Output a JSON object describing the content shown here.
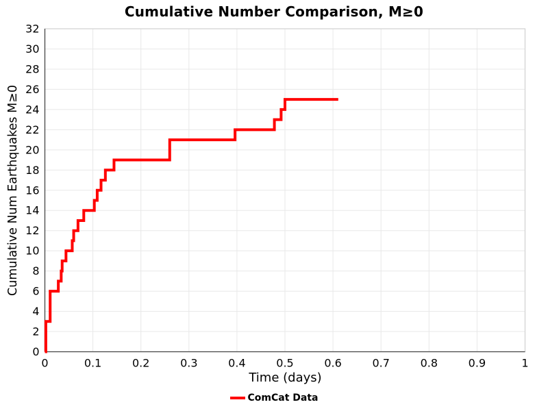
{
  "chart": {
    "title": "Cumulative Number Comparison, M≥0",
    "xlabel": "Time (days)",
    "ylabel": "Cumulative Num Earthquakes M≥0",
    "legend_label": "ComCat Data",
    "accent_color": "#ff0000"
  },
  "chart_data": {
    "type": "line",
    "subtype": "cumulative-step",
    "title": "Cumulative Number Comparison, M≥0",
    "xlabel": "Time (days)",
    "ylabel": "Cumulative Num Earthquakes M≥0",
    "xlim": [
      0,
      1
    ],
    "ylim": [
      0,
      32
    ],
    "grid": true,
    "legend_position": "bottom-center",
    "x_ticks": [
      0,
      0.1,
      0.2,
      0.3,
      0.4,
      0.5,
      0.6,
      0.7,
      0.8,
      0.9,
      1
    ],
    "x_tick_labels": [
      "0",
      "0.1",
      "0.2",
      "0.3",
      "0.4",
      "0.5",
      "0.6",
      "0.7",
      "0.8",
      "0.9",
      "1"
    ],
    "y_ticks": [
      0,
      2,
      4,
      6,
      8,
      10,
      12,
      14,
      16,
      18,
      20,
      22,
      24,
      26,
      28,
      30,
      32
    ],
    "y_tick_labels": [
      "0",
      "2",
      "4",
      "6",
      "8",
      "10",
      "12",
      "14",
      "16",
      "18",
      "20",
      "22",
      "24",
      "26",
      "28",
      "30",
      "32"
    ],
    "series": [
      {
        "name": "ComCat Data",
        "color": "#ff0000",
        "start": [
          0,
          0
        ],
        "steps": [
          [
            0.002,
            3
          ],
          [
            0.011,
            6
          ],
          [
            0.028,
            7
          ],
          [
            0.034,
            8
          ],
          [
            0.036,
            9
          ],
          [
            0.044,
            10
          ],
          [
            0.057,
            11
          ],
          [
            0.06,
            12
          ],
          [
            0.069,
            13
          ],
          [
            0.081,
            14
          ],
          [
            0.103,
            15
          ],
          [
            0.109,
            16
          ],
          [
            0.117,
            17
          ],
          [
            0.126,
            18
          ],
          [
            0.144,
            19
          ],
          [
            0.26,
            21
          ],
          [
            0.396,
            22
          ],
          [
            0.478,
            23
          ],
          [
            0.492,
            24
          ],
          [
            0.5,
            25
          ]
        ],
        "end_t": 0.611,
        "final_value": 25
      }
    ]
  }
}
